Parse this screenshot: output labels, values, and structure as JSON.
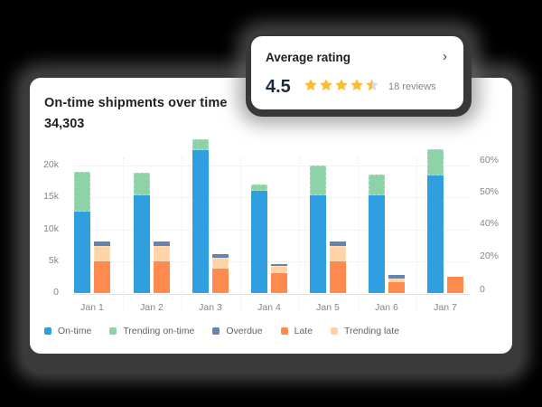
{
  "main_card": {
    "title": "On-time shipments over time",
    "total": "34,303"
  },
  "rating_card": {
    "title": "Average rating",
    "chevron": "›",
    "value": "4.5",
    "stars": 4.5,
    "reviews": "18 reviews",
    "star_color": "#fbbc2e",
    "star_empty_color": "#dadce0"
  },
  "colors": {
    "on_time": "#2f9fe0",
    "trending_on_time": "#8dd3a7",
    "overdue": "#6585b0",
    "late": "#ff8a50",
    "trending_late": "#ffd3a6"
  },
  "legend": [
    {
      "label": "On-time",
      "key": "on_time"
    },
    {
      "label": "Trending on-time",
      "key": "trending_on_time"
    },
    {
      "label": "Overdue",
      "key": "overdue"
    },
    {
      "label": "Late",
      "key": "late"
    },
    {
      "label": "Trending late",
      "key": "trending_late"
    }
  ],
  "y_left_ticks": [
    "20k",
    "15k",
    "10k",
    "5k",
    "0"
  ],
  "y_right_ticks": [
    "60%",
    "50%",
    "40%",
    "20%",
    "0"
  ],
  "chart_data": {
    "type": "bar",
    "title": "On-time shipments over time",
    "subtitle": "34,303",
    "categories": [
      "Jan 1",
      "Jan 2",
      "Jan 3",
      "Jan 4",
      "Jan 5",
      "Jan 6",
      "Jan 7"
    ],
    "stacks": [
      {
        "name": "left-stack",
        "series": [
          "On-time",
          "Trending on-time"
        ]
      },
      {
        "name": "right-stack",
        "series": [
          "Late",
          "Trending late",
          "Overdue"
        ]
      }
    ],
    "series": [
      {
        "name": "On-time",
        "stack": "left-stack",
        "values": [
          12700,
          15300,
          22400,
          16000,
          15300,
          15300,
          18400
        ]
      },
      {
        "name": "Trending on-time",
        "stack": "left-stack",
        "values": [
          6300,
          3600,
          1700,
          1000,
          4700,
          3300,
          4200
        ]
      },
      {
        "name": "Late",
        "stack": "right-stack",
        "values": [
          5000,
          5000,
          3800,
          3100,
          5000,
          1700,
          2600
        ]
      },
      {
        "name": "Trending late",
        "stack": "right-stack",
        "values": [
          2400,
          2400,
          1700,
          1200,
          2400,
          600,
          0
        ]
      },
      {
        "name": "Overdue",
        "stack": "right-stack",
        "values": [
          700,
          700,
          600,
          300,
          700,
          500,
          0
        ]
      }
    ],
    "xlabel": "",
    "ylabel_left": "",
    "ylabel_right": "",
    "ylim": [
      0,
      20000
    ],
    "y_left_ticks": [
      "0",
      "5k",
      "10k",
      "15k",
      "20k"
    ],
    "y_right_ticks": [
      "0",
      "20%",
      "40%",
      "50%",
      "60%"
    ],
    "grid": true,
    "legend_position": "bottom"
  }
}
